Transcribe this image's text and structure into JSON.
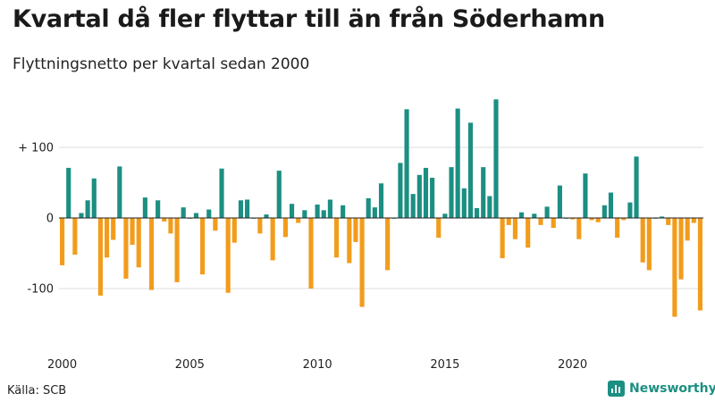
{
  "header": {
    "title": "Kvartal då fler flyttar till än från Söderhamn",
    "subtitle": "Flyttningsnetto per kvartal sedan 2000"
  },
  "footer": {
    "source": "Källa: SCB",
    "brand": "Newsworthy"
  },
  "colors": {
    "positive": "#1b8f82",
    "negative": "#f29c1c",
    "grid": "#dddddd",
    "brand": "#1b8f82"
  },
  "icons": {
    "brand": "newsworthy-logo-icon"
  },
  "chart_data": {
    "type": "bar",
    "title": "Kvartal då fler flyttar till än från Söderhamn",
    "subtitle": "Flyttningsnetto per kvartal sedan 2000",
    "ylim": [
      -150,
      170
    ],
    "y_ticks": [
      100,
      0,
      -100
    ],
    "y_tick_labels": [
      "+ 100",
      "0",
      "-100"
    ],
    "x_tick_labels": [
      "2000",
      "2005",
      "2010",
      "2015",
      "2020"
    ],
    "grid": true,
    "legend": "none",
    "start": "2000-Q1",
    "categories": [
      "2000-Q1",
      "2000-Q2",
      "2000-Q3",
      "2000-Q4",
      "2001-Q1",
      "2001-Q2",
      "2001-Q3",
      "2001-Q4",
      "2002-Q1",
      "2002-Q2",
      "2002-Q3",
      "2002-Q4",
      "2003-Q1",
      "2003-Q2",
      "2003-Q3",
      "2003-Q4",
      "2004-Q1",
      "2004-Q2",
      "2004-Q3",
      "2004-Q4",
      "2005-Q1",
      "2005-Q2",
      "2005-Q3",
      "2005-Q4",
      "2006-Q1",
      "2006-Q2",
      "2006-Q3",
      "2006-Q4",
      "2007-Q1",
      "2007-Q2",
      "2007-Q3",
      "2007-Q4",
      "2008-Q1",
      "2008-Q2",
      "2008-Q3",
      "2008-Q4",
      "2009-Q1",
      "2009-Q2",
      "2009-Q3",
      "2009-Q4",
      "2010-Q1",
      "2010-Q2",
      "2010-Q3",
      "2010-Q4",
      "2011-Q1",
      "2011-Q2",
      "2011-Q3",
      "2011-Q4",
      "2012-Q1",
      "2012-Q2",
      "2012-Q3",
      "2012-Q4",
      "2013-Q1",
      "2013-Q2",
      "2013-Q3",
      "2013-Q4",
      "2014-Q1",
      "2014-Q2",
      "2014-Q3",
      "2014-Q4",
      "2015-Q1",
      "2015-Q2",
      "2015-Q3",
      "2015-Q4",
      "2016-Q1",
      "2016-Q2",
      "2016-Q3",
      "2016-Q4",
      "2017-Q1",
      "2017-Q2",
      "2017-Q3",
      "2017-Q4",
      "2018-Q1",
      "2018-Q2",
      "2018-Q3",
      "2018-Q4",
      "2019-Q1",
      "2019-Q2",
      "2019-Q3",
      "2019-Q4",
      "2020-Q1",
      "2020-Q2",
      "2020-Q3",
      "2020-Q4",
      "2021-Q1",
      "2021-Q2",
      "2021-Q3",
      "2021-Q4",
      "2022-Q1",
      "2022-Q2",
      "2022-Q3",
      "2022-Q4",
      "2023-Q1",
      "2023-Q2",
      "2023-Q3",
      "2023-Q4",
      "2024-Q1",
      "2024-Q2",
      "2024-Q3",
      "2024-Q4",
      "2025-Q1"
    ],
    "values": [
      -67,
      71,
      -52,
      7,
      25,
      56,
      -110,
      -56,
      -31,
      73,
      -86,
      -38,
      -70,
      29,
      -102,
      25,
      -5,
      -22,
      -91,
      15,
      0,
      7,
      -80,
      12,
      -18,
      70,
      -106,
      -35,
      25,
      26,
      0,
      -22,
      5,
      -60,
      67,
      -27,
      20,
      -7,
      11,
      -100,
      19,
      11,
      26,
      -56,
      18,
      -64,
      -34,
      -126,
      28,
      15,
      49,
      -74,
      0,
      78,
      154,
      34,
      61,
      71,
      57,
      -28,
      6,
      72,
      155,
      42,
      135,
      14,
      72,
      31,
      168,
      -57,
      -10,
      -30,
      8,
      -42,
      6,
      -10,
      16,
      -14,
      46,
      0,
      -2,
      -30,
      63,
      -3,
      -6,
      18,
      36,
      -28,
      -3,
      22,
      87,
      -63,
      -74,
      0,
      2,
      -10,
      -140,
      -87,
      -32,
      -7,
      -131
    ]
  }
}
